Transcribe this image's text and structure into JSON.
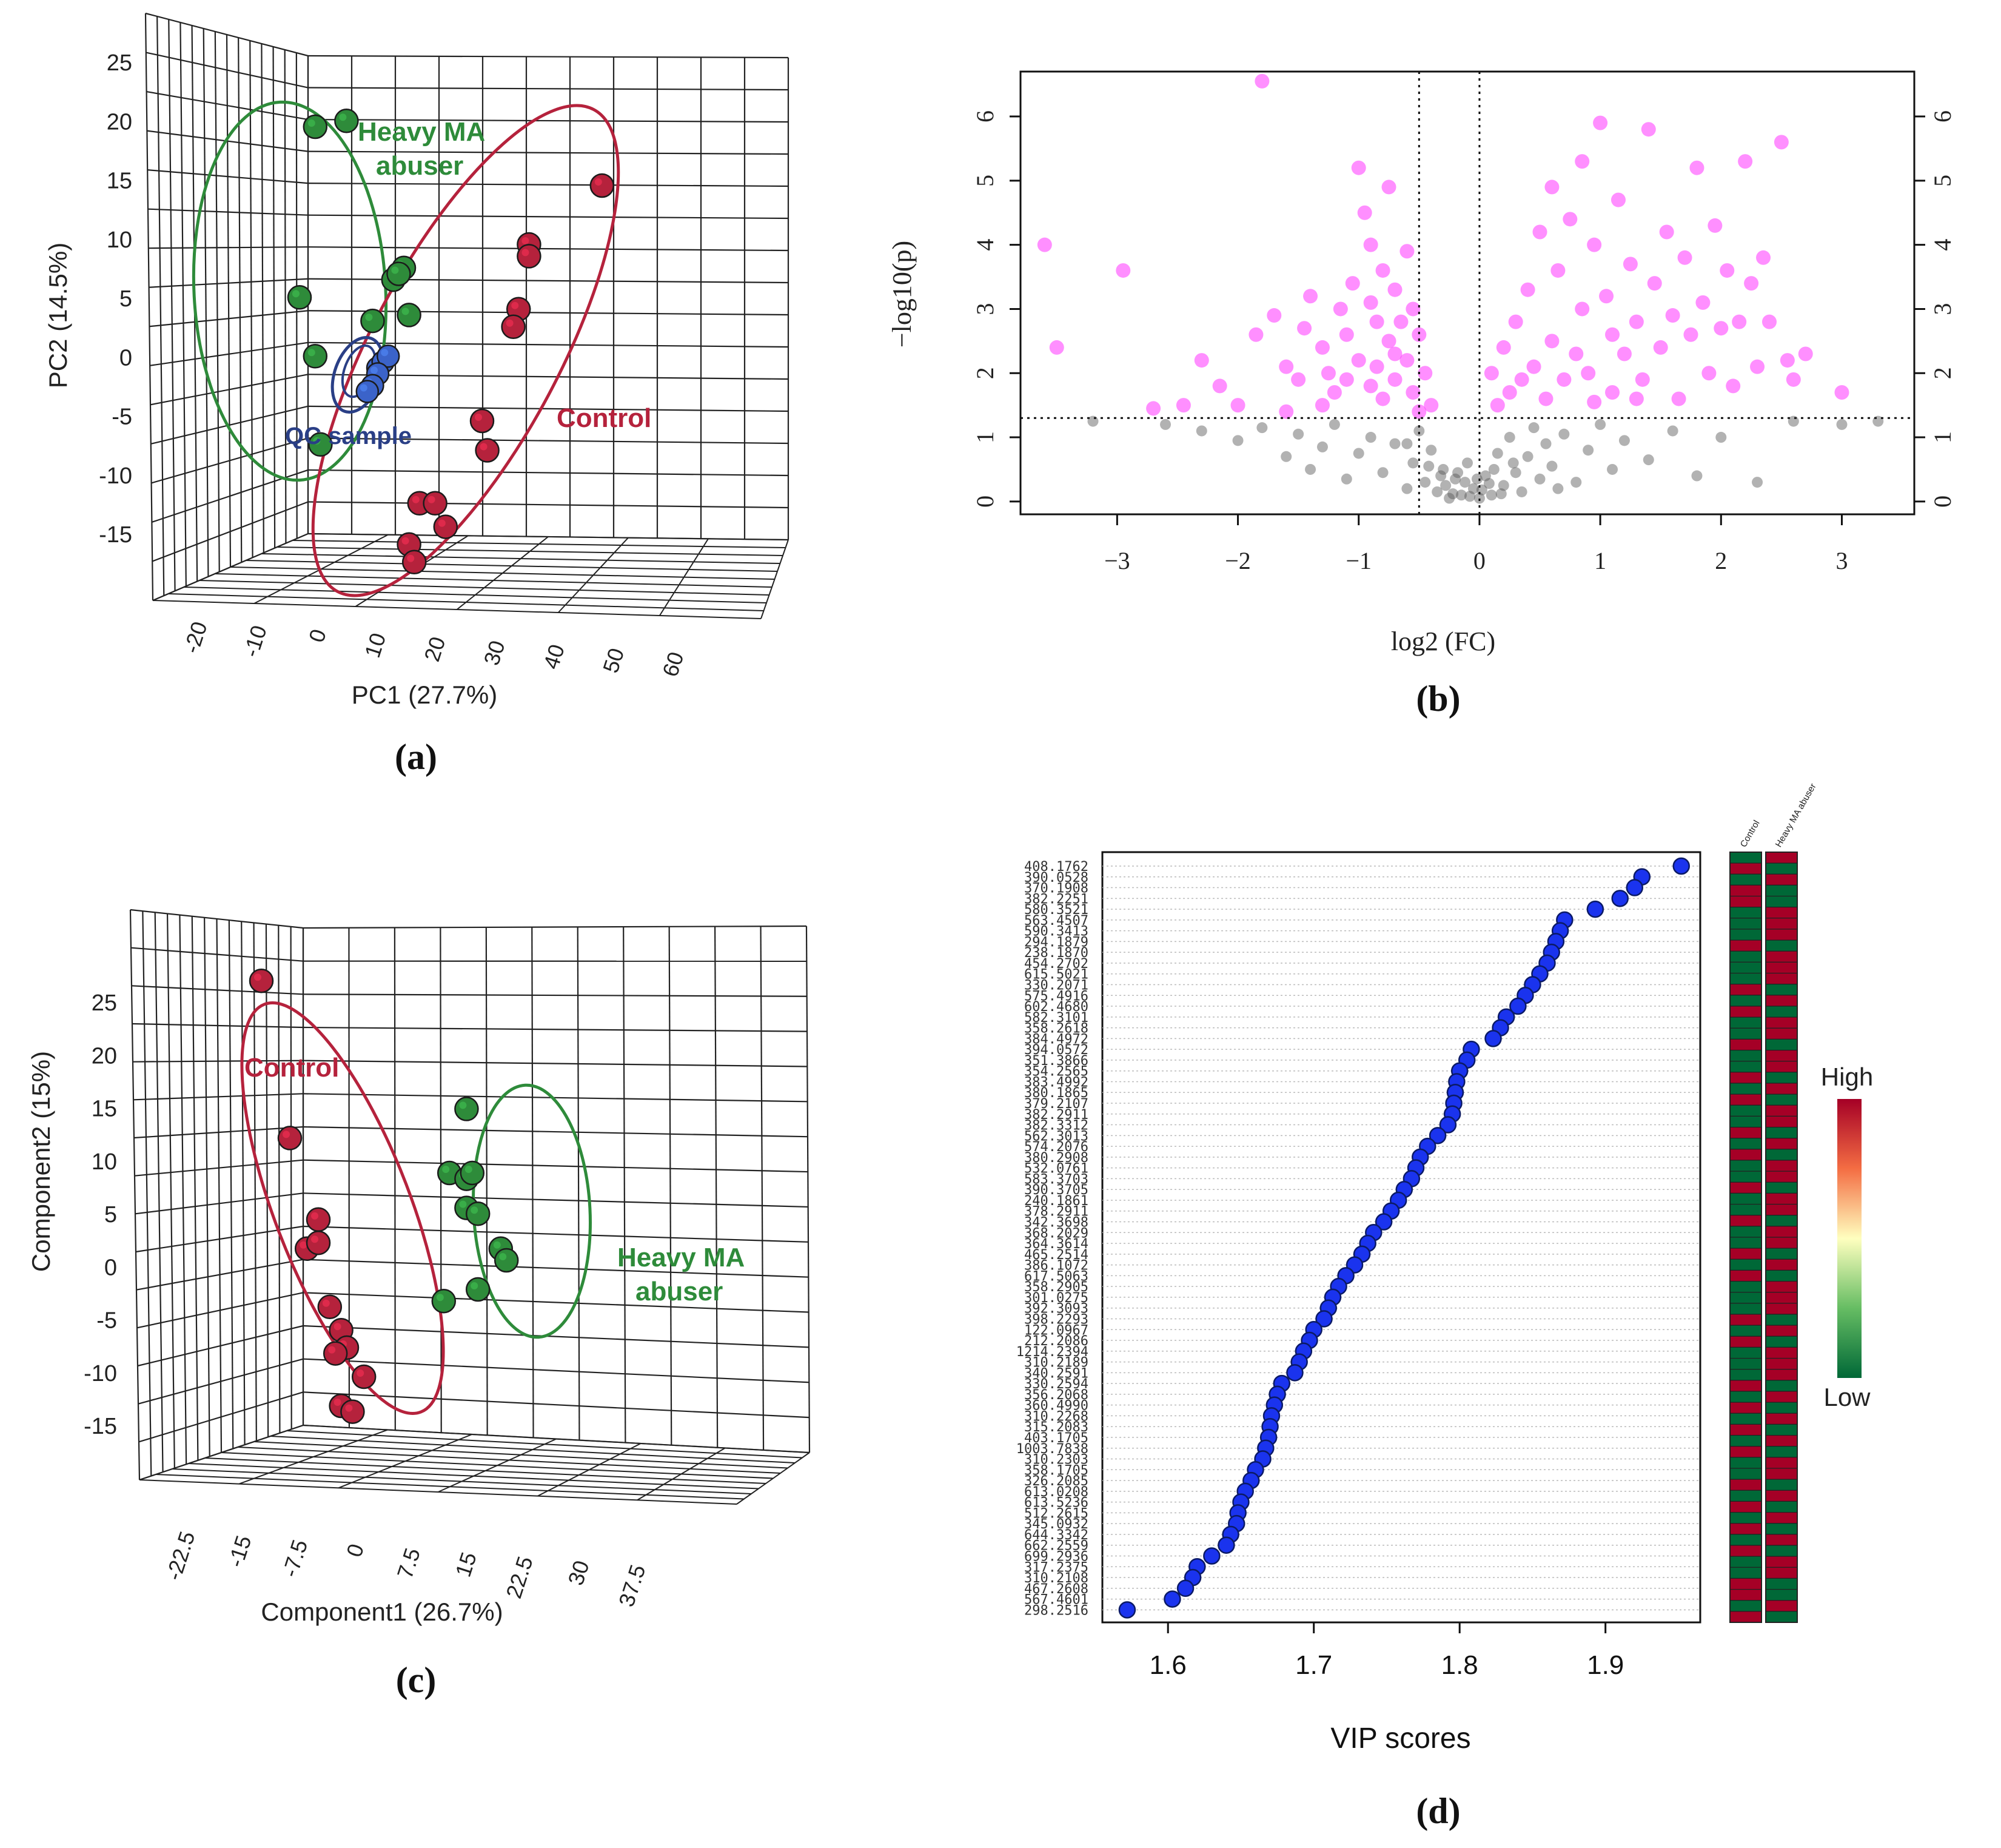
{
  "colors": {
    "control": "#b5223c",
    "heavy": "#2e8b3a",
    "qc": "#3b63c9",
    "qc_ring": "#2a3f86",
    "sig": "#ff33ff",
    "nonsig": "#555555",
    "vip": "#1a33ee",
    "grid": "#222222",
    "heat_high": "#a50026",
    "heat_low": "#006837"
  },
  "chart_data": [
    {
      "panel": "a",
      "type": "scatter",
      "subtype": "3d-pca",
      "title": "",
      "xlabel": "PC1 (27.7%)",
      "ylabel": "PC2 (14.5%)",
      "x_ticks": [
        "-20",
        "-10",
        "0",
        "10",
        "20",
        "30",
        "40",
        "50",
        "60"
      ],
      "y_ticks": [
        "25",
        "20",
        "15",
        "10",
        "5",
        "0",
        "-5",
        "-10",
        "-15"
      ],
      "y_range": [
        -15,
        25
      ],
      "groups": [
        {
          "name": "Heavy MA abuser",
          "label": "Heavy MA\nabuser",
          "color": "heavy",
          "points": [
            [
              -7,
              20
            ],
            [
              -1,
              20.5
            ],
            [
              8,
              7
            ],
            [
              10,
              8
            ],
            [
              9,
              7.5
            ],
            [
              4,
              3.5
            ],
            [
              11,
              4
            ],
            [
              -10,
              5.5
            ],
            [
              -7,
              0.5
            ],
            [
              -6,
              -7
            ]
          ]
        },
        {
          "name": "Control",
          "label": "Control",
          "color": "control",
          "points": [
            [
              48,
              15
            ],
            [
              34,
              10
            ],
            [
              34,
              9
            ],
            [
              32,
              4.5
            ],
            [
              31,
              3
            ],
            [
              25,
              -5
            ],
            [
              26,
              -7.5
            ],
            [
              13,
              -12
            ],
            [
              16,
              -12
            ],
            [
              18,
              -14
            ],
            [
              11,
              -15.5
            ],
            [
              12,
              -17
            ]
          ]
        },
        {
          "name": "QC sample",
          "label": "QC sample",
          "color": "qc",
          "points": [
            [
              5,
              -0.5
            ],
            [
              6,
              0
            ],
            [
              7,
              0.5
            ],
            [
              5,
              -1
            ],
            [
              4,
              -2
            ],
            [
              3,
              -2.5
            ]
          ]
        }
      ]
    },
    {
      "panel": "b",
      "type": "scatter",
      "subtype": "volcano",
      "xlabel": "log2 (FC)",
      "ylabel": "−log10(p)",
      "xlim": [
        -3.8,
        3.6
      ],
      "ylim": [
        -0.2,
        6.7
      ],
      "x_ticks": [
        -3,
        -2,
        -1,
        0,
        1,
        2,
        3
      ],
      "y_ticks": [
        0,
        1,
        2,
        3,
        4,
        5,
        6
      ],
      "fc_threshold_x": [
        -0.5,
        0.0
      ],
      "p_threshold_y": 1.3,
      "significant_points": [
        [
          -1.8,
          6.55
        ],
        [
          -3.6,
          4.0
        ],
        [
          -3.5,
          2.4
        ],
        [
          -2.95,
          3.6
        ],
        [
          -2.3,
          2.2
        ],
        [
          -2.15,
          1.8
        ],
        [
          -2.0,
          1.5
        ],
        [
          -1.85,
          2.6
        ],
        [
          -1.7,
          2.9
        ],
        [
          -1.6,
          2.1
        ],
        [
          -1.5,
          1.9
        ],
        [
          -1.45,
          2.7
        ],
        [
          -1.4,
          3.2
        ],
        [
          -1.3,
          2.4
        ],
        [
          -1.25,
          2.0
        ],
        [
          -1.2,
          1.7
        ],
        [
          -1.15,
          3.0
        ],
        [
          -1.1,
          2.6
        ],
        [
          -1.05,
          3.4
        ],
        [
          -1.0,
          5.2
        ],
        [
          -0.95,
          4.5
        ],
        [
          -0.9,
          4.0
        ],
        [
          -0.9,
          3.1
        ],
        [
          -0.85,
          2.8
        ],
        [
          -0.85,
          2.1
        ],
        [
          -0.8,
          3.6
        ],
        [
          -0.8,
          1.6
        ],
        [
          -0.75,
          4.9
        ],
        [
          -0.75,
          2.5
        ],
        [
          -0.7,
          3.3
        ],
        [
          -0.7,
          1.9
        ],
        [
          -0.65,
          2.8
        ],
        [
          -0.6,
          3.9
        ],
        [
          -0.6,
          2.2
        ],
        [
          -0.55,
          1.7
        ],
        [
          -0.55,
          3.0
        ],
        [
          -0.5,
          2.6
        ],
        [
          -0.5,
          1.4
        ],
        [
          -0.45,
          2.0
        ],
        [
          -0.4,
          1.5
        ],
        [
          -1.3,
          1.5
        ],
        [
          -1.6,
          1.4
        ],
        [
          -2.45,
          1.5
        ],
        [
          -2.7,
          1.45
        ],
        [
          -1.0,
          2.2
        ],
        [
          -0.9,
          1.8
        ],
        [
          -0.7,
          2.3
        ],
        [
          -1.1,
          1.9
        ],
        [
          0.1,
          2.0
        ],
        [
          0.15,
          1.5
        ],
        [
          0.2,
          2.4
        ],
        [
          0.25,
          1.7
        ],
        [
          0.3,
          2.8
        ],
        [
          0.35,
          1.9
        ],
        [
          0.4,
          3.3
        ],
        [
          0.45,
          2.1
        ],
        [
          0.5,
          4.2
        ],
        [
          0.55,
          1.6
        ],
        [
          0.6,
          4.9
        ],
        [
          0.6,
          2.5
        ],
        [
          0.65,
          3.6
        ],
        [
          0.7,
          1.9
        ],
        [
          0.75,
          4.4
        ],
        [
          0.8,
          2.3
        ],
        [
          0.85,
          5.3
        ],
        [
          0.85,
          3.0
        ],
        [
          0.9,
          2.0
        ],
        [
          0.95,
          4.0
        ],
        [
          1.0,
          5.9
        ],
        [
          1.05,
          3.2
        ],
        [
          1.1,
          2.6
        ],
        [
          1.1,
          1.7
        ],
        [
          1.15,
          4.7
        ],
        [
          1.2,
          2.3
        ],
        [
          1.25,
          3.7
        ],
        [
          1.3,
          2.8
        ],
        [
          1.35,
          1.9
        ],
        [
          1.4,
          5.8
        ],
        [
          1.45,
          3.4
        ],
        [
          1.5,
          2.4
        ],
        [
          1.55,
          4.2
        ],
        [
          1.6,
          2.9
        ],
        [
          1.65,
          1.6
        ],
        [
          1.7,
          3.8
        ],
        [
          1.75,
          2.6
        ],
        [
          1.8,
          5.2
        ],
        [
          1.85,
          3.1
        ],
        [
          1.9,
          2.0
        ],
        [
          1.95,
          4.3
        ],
        [
          2.0,
          2.7
        ],
        [
          2.05,
          3.6
        ],
        [
          2.1,
          1.8
        ],
        [
          2.15,
          2.8
        ],
        [
          2.2,
          5.3
        ],
        [
          2.25,
          3.4
        ],
        [
          2.3,
          2.1
        ],
        [
          2.35,
          3.8
        ],
        [
          2.4,
          2.8
        ],
        [
          2.5,
          5.6
        ],
        [
          2.55,
          2.2
        ],
        [
          2.6,
          1.9
        ],
        [
          3.0,
          1.7
        ],
        [
          1.3,
          1.6
        ],
        [
          0.95,
          1.55
        ],
        [
          2.7,
          2.3
        ]
      ],
      "nonsignificant_points": [
        [
          -3.2,
          1.25
        ],
        [
          -2.6,
          1.2
        ],
        [
          -2.3,
          1.1
        ],
        [
          -2.0,
          0.95
        ],
        [
          -1.8,
          1.15
        ],
        [
          -1.6,
          0.7
        ],
        [
          -1.5,
          1.05
        ],
        [
          -1.4,
          0.5
        ],
        [
          -1.3,
          0.85
        ],
        [
          -1.2,
          1.2
        ],
        [
          -1.1,
          0.35
        ],
        [
          -1.0,
          0.75
        ],
        [
          -0.9,
          1.0
        ],
        [
          -0.8,
          0.45
        ],
        [
          -0.7,
          0.9
        ],
        [
          -0.6,
          0.2
        ],
        [
          -0.55,
          0.6
        ],
        [
          -0.5,
          1.1
        ],
        [
          -0.45,
          0.3
        ],
        [
          -0.4,
          0.8
        ],
        [
          -0.35,
          0.15
        ],
        [
          -0.3,
          0.5
        ],
        [
          -0.25,
          0.05
        ],
        [
          -0.2,
          0.35
        ],
        [
          -0.15,
          0.1
        ],
        [
          -0.1,
          0.6
        ],
        [
          -0.05,
          0.2
        ],
        [
          0.0,
          0.05
        ],
        [
          0.05,
          0.4
        ],
        [
          0.1,
          0.1
        ],
        [
          0.15,
          0.75
        ],
        [
          0.2,
          0.25
        ],
        [
          0.25,
          1.0
        ],
        [
          0.3,
          0.45
        ],
        [
          0.35,
          0.15
        ],
        [
          0.4,
          0.7
        ],
        [
          0.45,
          1.15
        ],
        [
          0.5,
          0.35
        ],
        [
          0.55,
          0.9
        ],
        [
          0.6,
          0.55
        ],
        [
          0.7,
          1.05
        ],
        [
          0.8,
          0.3
        ],
        [
          0.9,
          0.8
        ],
        [
          1.0,
          1.2
        ],
        [
          1.1,
          0.5
        ],
        [
          1.2,
          0.95
        ],
        [
          1.4,
          0.65
        ],
        [
          1.6,
          1.1
        ],
        [
          1.8,
          0.4
        ],
        [
          2.0,
          1.0
        ],
        [
          2.3,
          0.3
        ],
        [
          2.6,
          1.25
        ],
        [
          3.0,
          1.2
        ],
        [
          3.3,
          1.25
        ],
        [
          -0.28,
          0.25
        ],
        [
          -0.22,
          0.12
        ],
        [
          -0.12,
          0.3
        ],
        [
          -0.08,
          0.08
        ],
        [
          0.02,
          0.18
        ],
        [
          0.08,
          0.28
        ],
        [
          -0.32,
          0.4
        ],
        [
          -0.18,
          0.45
        ],
        [
          0.12,
          0.5
        ],
        [
          0.18,
          0.12
        ],
        [
          -0.02,
          0.35
        ],
        [
          -0.42,
          0.55
        ],
        [
          0.28,
          0.6
        ],
        [
          -0.6,
          0.9
        ],
        [
          0.65,
          0.2
        ]
      ]
    },
    {
      "panel": "c",
      "type": "scatter",
      "subtype": "3d-pls-da",
      "xlabel": "Component1 (26.7%)",
      "ylabel": "Component2 (15%)",
      "x_ticks": [
        "-22.5",
        "-15",
        "-7.5",
        "0",
        "7.5",
        "15",
        "22.5",
        "30",
        "37.5"
      ],
      "y_ticks": [
        "25",
        "20",
        "15",
        "10",
        "5",
        "0",
        "-5",
        "-10",
        "-15"
      ],
      "y_range": [
        -15,
        25
      ],
      "groups": [
        {
          "name": "Control",
          "label": "Control",
          "color": "control",
          "points": [
            [
              -15,
              24
            ],
            [
              -10,
              10.5
            ],
            [
              -5,
              3.5
            ],
            [
              -7,
              1
            ],
            [
              -5,
              1.5
            ],
            [
              -3,
              -4
            ],
            [
              -1,
              -6
            ],
            [
              0,
              -7.5
            ],
            [
              -2,
              -8
            ],
            [
              3,
              -10
            ],
            [
              -1,
              -12.5
            ],
            [
              1,
              -13
            ]
          ]
        },
        {
          "name": "Heavy MA abuser",
          "label": "Heavy MA\nabuser",
          "color": "heavy",
          "points": [
            [
              21,
              13
            ],
            [
              18,
              7.5
            ],
            [
              21,
              7
            ],
            [
              22,
              7.5
            ],
            [
              21,
              4.5
            ],
            [
              23,
              4
            ],
            [
              27,
              1
            ],
            [
              28,
              0
            ],
            [
              23,
              -2.5
            ],
            [
              17,
              -3.5
            ]
          ]
        }
      ]
    },
    {
      "panel": "d",
      "type": "scatter",
      "subtype": "vip-scores",
      "xlabel": "VIP scores",
      "xlim": [
        1.555,
        1.965
      ],
      "x_ticks": [
        1.6,
        1.7,
        1.8,
        1.9
      ],
      "features": [
        "408.1762",
        "390.0528",
        "370.1908",
        "382.2251",
        "580.3521",
        "563.4507",
        "590.3413",
        "294.1879",
        "238.1870",
        "454.2702",
        "615.5021",
        "330.2071",
        "575.4916",
        "602.4680",
        "582.3101",
        "358.2618",
        "384.4972",
        "394.0572",
        "351.3866",
        "354.2565",
        "383.4992",
        "380.1865",
        "379.2107",
        "382.2911",
        "382.3312",
        "562.3013",
        "574.2076",
        "380.2908",
        "532.0761",
        "583.3703",
        "390.3705",
        "240.1861",
        "378.2911",
        "342.3698",
        "368.2029",
        "364.3614",
        "465.2514",
        "386.1072",
        "617.5063",
        "358.2905",
        "301.0275",
        "392.3093",
        "398.2293",
        "122.0967",
        "212.2086",
        "1214.2394",
        "310.2189",
        "340.2591",
        "330.2594",
        "356.2068",
        "360.4990",
        "310.2268",
        "315.2083",
        "403.1705",
        "1003.7838",
        "310.2303",
        "358.1705",
        "326.2085",
        "613.0208",
        "613.5236",
        "512.2615",
        "345.0932",
        "644.3342",
        "662.2559",
        "699.2936",
        "317.2375",
        "310.2108",
        "467.2608",
        "567.4601",
        "298.2516"
      ],
      "scores": [
        1.952,
        1.925,
        1.92,
        1.91,
        1.893,
        1.872,
        1.869,
        1.866,
        1.863,
        1.86,
        1.855,
        1.85,
        1.845,
        1.84,
        1.832,
        1.828,
        1.823,
        1.808,
        1.805,
        1.8,
        1.798,
        1.797,
        1.796,
        1.795,
        1.792,
        1.785,
        1.778,
        1.773,
        1.77,
        1.767,
        1.762,
        1.758,
        1.753,
        1.748,
        1.741,
        1.737,
        1.733,
        1.728,
        1.722,
        1.717,
        1.713,
        1.71,
        1.707,
        1.7,
        1.697,
        1.693,
        1.69,
        1.687,
        1.678,
        1.675,
        1.673,
        1.671,
        1.67,
        1.669,
        1.667,
        1.665,
        1.66,
        1.657,
        1.653,
        1.65,
        1.648,
        1.647,
        1.643,
        1.64,
        1.63,
        1.62,
        1.617,
        1.612,
        1.603,
        1.572
      ],
      "heatmap_columns": [
        "Control",
        "Heavy MA abuser"
      ],
      "heatmap_high_is_control": [
        false,
        true,
        false,
        true,
        true,
        false,
        false,
        false,
        true,
        false,
        false,
        false,
        true,
        false,
        true,
        false,
        false,
        true,
        false,
        false,
        true,
        false,
        true,
        false,
        false,
        true,
        false,
        true,
        false,
        false,
        true,
        false,
        false,
        true,
        false,
        false,
        true,
        false,
        true,
        false,
        false,
        false,
        true,
        false,
        true,
        false,
        false,
        false,
        true,
        false,
        true,
        false,
        true,
        false,
        true,
        false,
        false,
        true,
        false,
        true,
        false,
        true,
        false,
        true,
        false,
        false,
        true,
        true,
        false,
        true
      ],
      "heatmap_legend": {
        "high": "High",
        "low": "Low"
      }
    }
  ],
  "annotations": {
    "a": {
      "heavy": "Heavy MA",
      "heavy2": "abuser",
      "control": "Control",
      "qc": "QC sample"
    },
    "c": {
      "control": "Control",
      "heavy": "Heavy MA",
      "heavy2": "abuser"
    }
  },
  "panel_labels": {
    "a": "(a)",
    "b": "(b)",
    "c": "(c)",
    "d": "(d)"
  }
}
